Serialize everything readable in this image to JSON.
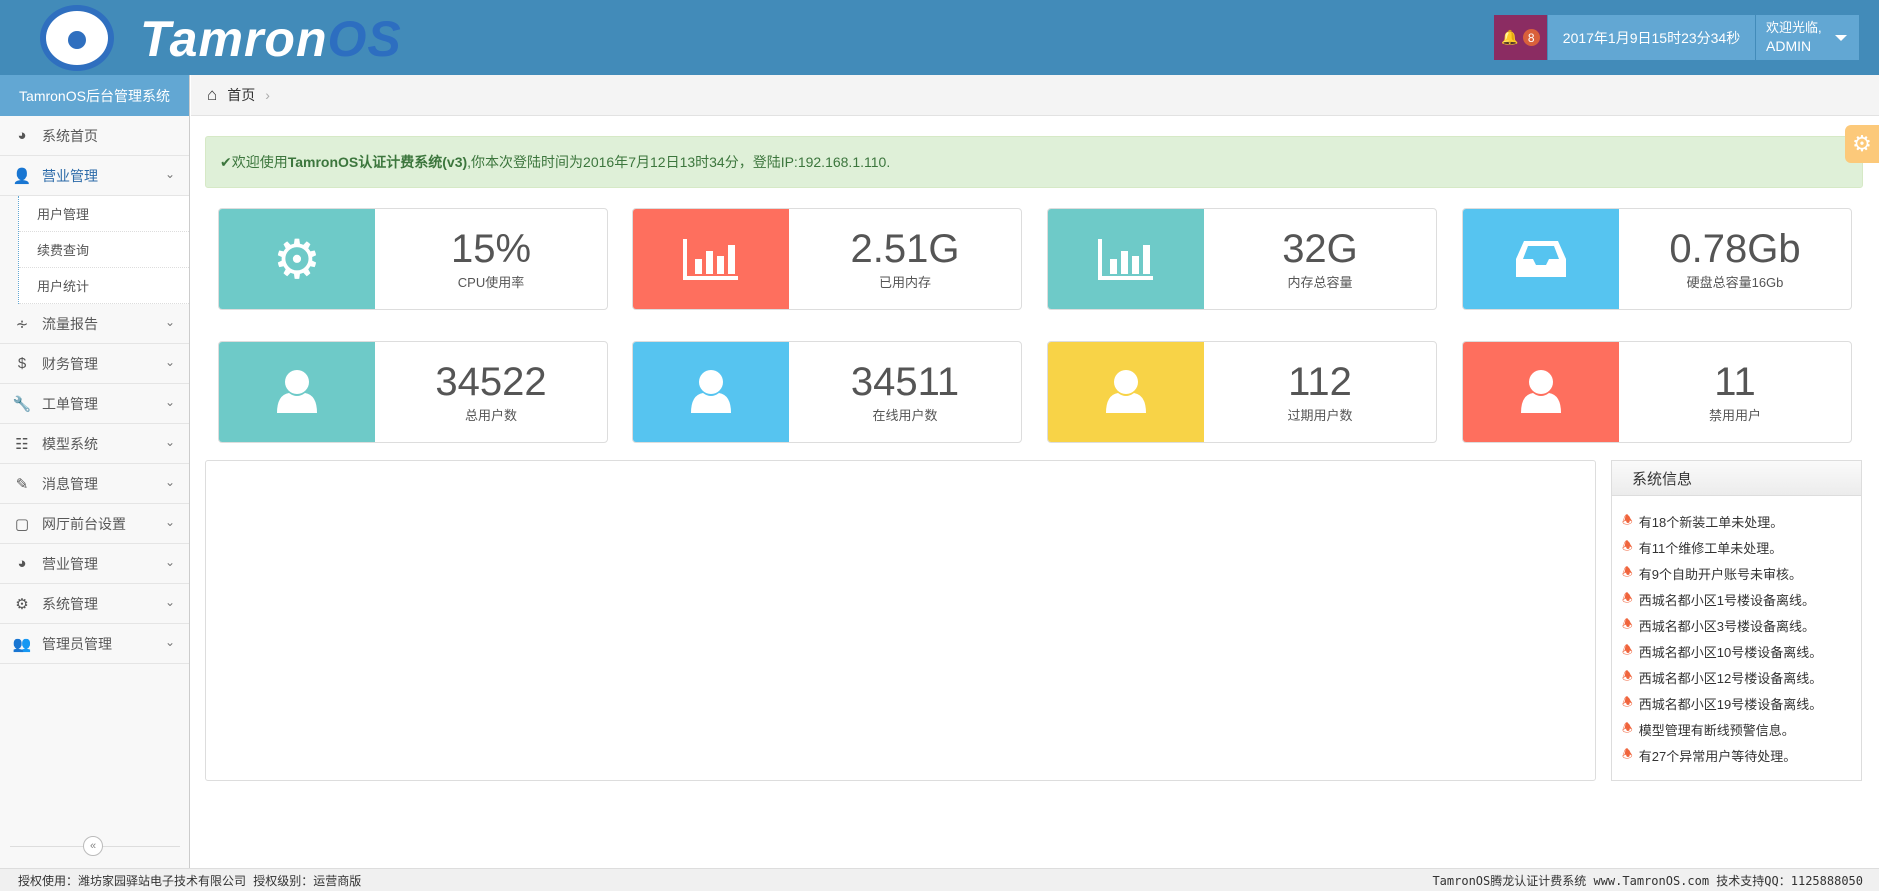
{
  "header": {
    "brand_main": "Tamron",
    "brand_accent": "OS",
    "notification_count": "8",
    "datetime": "2017年1月9日15时23分34秒",
    "welcome": "欢迎光临,",
    "username": "ADMIN"
  },
  "sidebar": {
    "title": "TamronOS后台管理系统",
    "items": [
      {
        "label": "系统首页",
        "icon": "dashboard-icon"
      },
      {
        "label": "营业管理",
        "icon": "user-icon",
        "active": true,
        "sub": [
          "用户管理",
          "续费查询",
          "用户统计"
        ]
      },
      {
        "label": "流量报告",
        "icon": "rss-icon"
      },
      {
        "label": "财务管理",
        "icon": "dollar-icon"
      },
      {
        "label": "工单管理",
        "icon": "wrench-icon"
      },
      {
        "label": "模型系统",
        "icon": "sitemap-icon"
      },
      {
        "label": "消息管理",
        "icon": "edit-icon"
      },
      {
        "label": "网厅前台设置",
        "icon": "monitor-icon"
      },
      {
        "label": "营业管理",
        "icon": "dashboard-icon"
      },
      {
        "label": "系统管理",
        "icon": "gears-icon"
      },
      {
        "label": "管理员管理",
        "icon": "users-icon"
      }
    ]
  },
  "breadcrumb": {
    "home": "首页"
  },
  "alert": {
    "prefix": "欢迎使用",
    "system": "TamronOS认证计费系统(v3)",
    "rest": ",你本次登陆时间为2016年7月12日13时34分，登陆IP:192.168.1.110."
  },
  "stats": [
    {
      "value": "15%",
      "label": "CPU使用率",
      "icon": "gears-icon",
      "color": "#6ecac8"
    },
    {
      "value": "2.51G",
      "label": "已用内存",
      "icon": "bar-chart-icon",
      "color": "#fe6f5e"
    },
    {
      "value": "32G",
      "label": "内存总容量",
      "icon": "bar-chart-icon",
      "color": "#6ecac8"
    },
    {
      "value": "0.78Gb",
      "label": "硬盘总容量16Gb",
      "icon": "inbox-icon",
      "color": "#56c4f0"
    },
    {
      "value": "34522",
      "label": "总用户数",
      "icon": "user-icon",
      "color": "#6ecac8"
    },
    {
      "value": "34511",
      "label": "在线用户数",
      "icon": "user-icon",
      "color": "#56c4f0"
    },
    {
      "value": "112",
      "label": "过期用户数",
      "icon": "user-icon",
      "color": "#f8d347"
    },
    {
      "value": "11",
      "label": "禁用用户",
      "icon": "user-icon",
      "color": "#fe6f5e"
    }
  ],
  "system_info": {
    "title": "系统信息",
    "items": [
      "有18个新装工单未处理。",
      "有11个维修工单未处理。",
      "有9个自助开户账号未审核。",
      "西城名都小区1号楼设备离线。",
      "西城名都小区3号楼设备离线。",
      "西城名都小区10号楼设备离线。",
      "西城名都小区12号楼设备离线。",
      "西城名都小区19号楼设备离线。",
      "模型管理有断线预警信息。",
      "有27个异常用户等待处理。"
    ]
  },
  "footer": {
    "left": "授权使用：潍坊家园驿站电子技术有限公司 授权级别：运营商版",
    "right": "TamronOS腾龙认证计费系统 www.TamronOS.com 技术支持QQ：1125888050"
  }
}
